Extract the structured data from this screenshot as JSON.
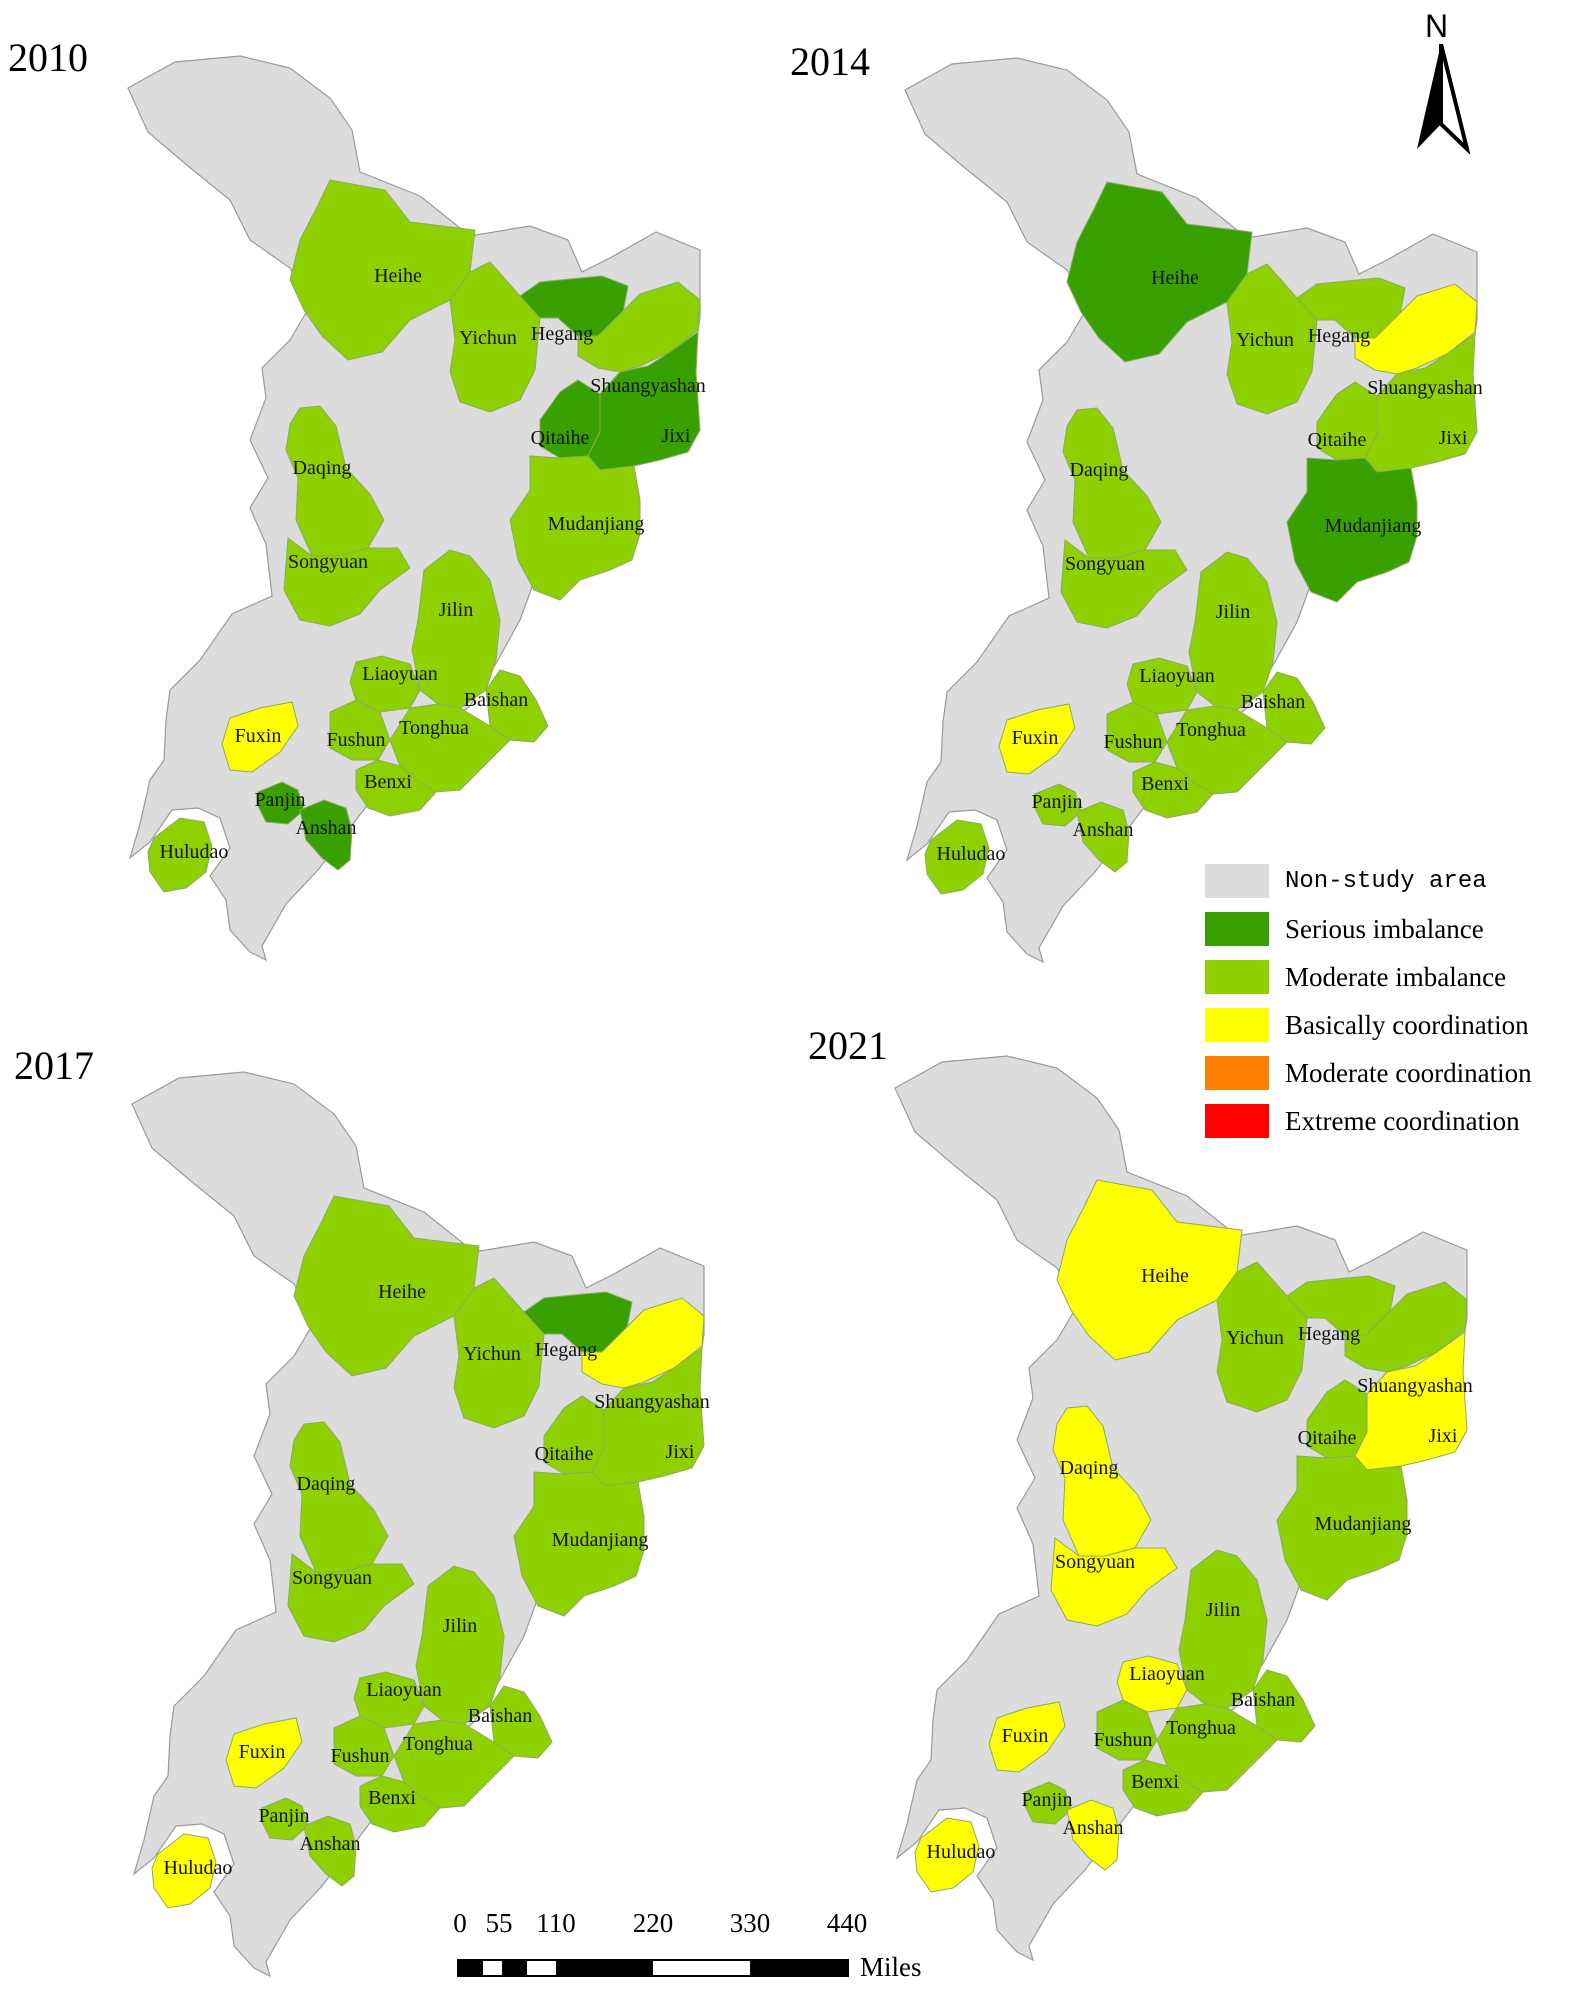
{
  "legend": {
    "items": [
      {
        "label": "Non-study area",
        "color": "#dcdcdc"
      },
      {
        "label": "Serious imbalance",
        "color": "#38a000"
      },
      {
        "label": "Moderate imbalance",
        "color": "#8fd000"
      },
      {
        "label": "Basically coordination",
        "color": "#ffff00"
      },
      {
        "label": "Moderate coordination",
        "color": "#ff8000"
      },
      {
        "label": "Extreme coordination",
        "color": "#ff0000"
      }
    ]
  },
  "north_arrow": {
    "label": "N"
  },
  "scale_bar": {
    "ticks": [
      "0",
      "55",
      "110",
      "220",
      "330",
      "440"
    ],
    "units": "Miles"
  },
  "panels": [
    {
      "year": "2010",
      "cities": [
        {
          "name": "Heihe",
          "status": "Moderate imbalance"
        },
        {
          "name": "Yichun",
          "status": "Moderate imbalance"
        },
        {
          "name": "Hegang",
          "status": "Serious imbalance"
        },
        {
          "name": "Shuangyashan",
          "status": "Moderate imbalance"
        },
        {
          "name": "Qitaihe",
          "status": "Serious imbalance"
        },
        {
          "name": "Jixi",
          "status": "Serious imbalance"
        },
        {
          "name": "Daqing",
          "status": "Moderate imbalance"
        },
        {
          "name": "Mudanjiang",
          "status": "Moderate imbalance"
        },
        {
          "name": "Songyuan",
          "status": "Moderate imbalance"
        },
        {
          "name": "Jilin",
          "status": "Moderate imbalance"
        },
        {
          "name": "Liaoyuan",
          "status": "Moderate imbalance"
        },
        {
          "name": "Baishan",
          "status": "Moderate imbalance"
        },
        {
          "name": "Fuxin",
          "status": "Basically coordination"
        },
        {
          "name": "Fushun",
          "status": "Moderate imbalance"
        },
        {
          "name": "Tonghua",
          "status": "Moderate imbalance"
        },
        {
          "name": "Benxi",
          "status": "Moderate imbalance"
        },
        {
          "name": "Panjin",
          "status": "Serious imbalance"
        },
        {
          "name": "Anshan",
          "status": "Serious imbalance"
        },
        {
          "name": "Huludao",
          "status": "Moderate imbalance"
        }
      ]
    },
    {
      "year": "2014",
      "cities": [
        {
          "name": "Heihe",
          "status": "Serious imbalance"
        },
        {
          "name": "Yichun",
          "status": "Moderate imbalance"
        },
        {
          "name": "Hegang",
          "status": "Moderate imbalance"
        },
        {
          "name": "Shuangyashan",
          "status": "Basically coordination"
        },
        {
          "name": "Qitaihe",
          "status": "Moderate imbalance"
        },
        {
          "name": "Jixi",
          "status": "Moderate imbalance"
        },
        {
          "name": "Daqing",
          "status": "Moderate imbalance"
        },
        {
          "name": "Mudanjiang",
          "status": "Serious imbalance"
        },
        {
          "name": "Songyuan",
          "status": "Moderate imbalance"
        },
        {
          "name": "Jilin",
          "status": "Moderate imbalance"
        },
        {
          "name": "Liaoyuan",
          "status": "Moderate imbalance"
        },
        {
          "name": "Baishan",
          "status": "Moderate imbalance"
        },
        {
          "name": "Fuxin",
          "status": "Basically coordination"
        },
        {
          "name": "Fushun",
          "status": "Moderate imbalance"
        },
        {
          "name": "Tonghua",
          "status": "Moderate imbalance"
        },
        {
          "name": "Benxi",
          "status": "Moderate imbalance"
        },
        {
          "name": "Panjin",
          "status": "Moderate imbalance"
        },
        {
          "name": "Anshan",
          "status": "Moderate imbalance"
        },
        {
          "name": "Huludao",
          "status": "Moderate imbalance"
        }
      ]
    },
    {
      "year": "2017",
      "cities": [
        {
          "name": "Heihe",
          "status": "Moderate imbalance"
        },
        {
          "name": "Yichun",
          "status": "Moderate imbalance"
        },
        {
          "name": "Hegang",
          "status": "Serious imbalance"
        },
        {
          "name": "Shuangyashan",
          "status": "Basically coordination"
        },
        {
          "name": "Qitaihe",
          "status": "Moderate imbalance"
        },
        {
          "name": "Jixi",
          "status": "Moderate imbalance"
        },
        {
          "name": "Daqing",
          "status": "Moderate imbalance"
        },
        {
          "name": "Mudanjiang",
          "status": "Moderate imbalance"
        },
        {
          "name": "Songyuan",
          "status": "Moderate imbalance"
        },
        {
          "name": "Jilin",
          "status": "Moderate imbalance"
        },
        {
          "name": "Liaoyuan",
          "status": "Moderate imbalance"
        },
        {
          "name": "Baishan",
          "status": "Moderate imbalance"
        },
        {
          "name": "Fuxin",
          "status": "Basically coordination"
        },
        {
          "name": "Fushun",
          "status": "Moderate imbalance"
        },
        {
          "name": "Tonghua",
          "status": "Moderate imbalance"
        },
        {
          "name": "Benxi",
          "status": "Moderate imbalance"
        },
        {
          "name": "Panjin",
          "status": "Moderate imbalance"
        },
        {
          "name": "Anshan",
          "status": "Moderate imbalance"
        },
        {
          "name": "Huludao",
          "status": "Basically coordination"
        }
      ]
    },
    {
      "year": "2021",
      "cities": [
        {
          "name": "Heihe",
          "status": "Basically coordination"
        },
        {
          "name": "Yichun",
          "status": "Moderate imbalance"
        },
        {
          "name": "Hegang",
          "status": "Moderate imbalance"
        },
        {
          "name": "Shuangyashan",
          "status": "Moderate imbalance"
        },
        {
          "name": "Qitaihe",
          "status": "Moderate imbalance"
        },
        {
          "name": "Jixi",
          "status": "Basically coordination"
        },
        {
          "name": "Daqing",
          "status": "Basically coordination"
        },
        {
          "name": "Mudanjiang",
          "status": "Moderate imbalance"
        },
        {
          "name": "Songyuan",
          "status": "Basically coordination"
        },
        {
          "name": "Jilin",
          "status": "Moderate imbalance"
        },
        {
          "name": "Liaoyuan",
          "status": "Basically coordination"
        },
        {
          "name": "Baishan",
          "status": "Moderate imbalance"
        },
        {
          "name": "Fuxin",
          "status": "Basically coordination"
        },
        {
          "name": "Fushun",
          "status": "Moderate imbalance"
        },
        {
          "name": "Tonghua",
          "status": "Moderate imbalance"
        },
        {
          "name": "Benxi",
          "status": "Moderate imbalance"
        },
        {
          "name": "Panjin",
          "status": "Moderate imbalance"
        },
        {
          "name": "Anshan",
          "status": "Basically coordination"
        },
        {
          "name": "Huludao",
          "status": "Basically coordination"
        }
      ]
    }
  ]
}
